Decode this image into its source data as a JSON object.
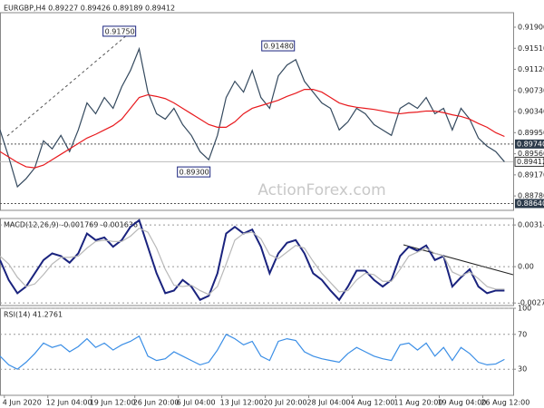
{
  "header": "EURGBP,H4  0.89227 0.89426 0.89189 0.89412",
  "watermark": "ActionForex.com",
  "chart_data": [
    {
      "type": "line",
      "x": [
        0,
        2,
        4,
        6,
        8,
        10,
        12,
        14,
        16,
        18,
        20,
        22,
        24,
        26,
        28,
        30,
        32,
        34,
        36,
        38,
        40,
        42,
        44,
        46,
        48,
        50,
        52,
        54,
        56,
        58,
        60,
        62,
        64,
        66,
        68,
        70,
        72,
        74,
        76,
        78,
        80,
        82,
        84,
        86,
        88,
        90,
        92,
        94,
        96,
        98,
        100,
        102,
        104,
        106,
        108,
        110,
        112,
        114,
        116
      ],
      "series": [
        {
          "name": "EURGBP",
          "color": "#34495e",
          "values": [
            0.9,
            0.895,
            0.8895,
            0.891,
            0.893,
            0.898,
            0.8965,
            0.899,
            0.896,
            0.9,
            0.905,
            0.903,
            0.906,
            0.904,
            0.908,
            0.911,
            0.915,
            0.907,
            0.903,
            0.902,
            0.904,
            0.901,
            0.899,
            0.896,
            0.8945,
            0.899,
            0.906,
            0.909,
            0.907,
            0.911,
            0.906,
            0.904,
            0.91,
            0.912,
            0.913,
            0.909,
            0.907,
            0.905,
            0.904,
            0.9,
            0.9015,
            0.904,
            0.903,
            0.901,
            0.9,
            0.899,
            0.904,
            0.905,
            0.904,
            0.906,
            0.903,
            0.904,
            0.9,
            0.904,
            0.902,
            0.8985,
            0.897,
            0.896,
            0.89412
          ]
        },
        {
          "name": "MA",
          "color": "#e8191d",
          "values": [
            0.896,
            0.895,
            0.894,
            0.8932,
            0.893,
            0.8935,
            0.8945,
            0.8955,
            0.8965,
            0.8975,
            0.8985,
            0.8992,
            0.9,
            0.9008,
            0.902,
            0.904,
            0.906,
            0.9065,
            0.9062,
            0.9058,
            0.905,
            0.904,
            0.903,
            0.902,
            0.901,
            0.9005,
            0.9005,
            0.9015,
            0.903,
            0.904,
            0.9045,
            0.905,
            0.9055,
            0.9062,
            0.9068,
            0.9075,
            0.9075,
            0.907,
            0.906,
            0.905,
            0.9045,
            0.9042,
            0.904,
            0.9038,
            0.9035,
            0.9032,
            0.903,
            0.9032,
            0.9033,
            0.9035,
            0.9035,
            0.9032,
            0.9028,
            0.9025,
            0.902,
            0.9012,
            0.9005,
            0.8995,
            0.8988
          ]
        }
      ],
      "xlim": [
        0,
        118
      ],
      "ylim": [
        0.88514,
        0.92168
      ],
      "yticks": [
        {
          "value": 0.919,
          "label": "0.91900"
        },
        {
          "value": 0.9151,
          "label": "0.91510"
        },
        {
          "value": 0.9112,
          "label": "0.91120"
        },
        {
          "value": 0.9073,
          "label": "0.90730"
        },
        {
          "value": 0.9034,
          "label": "0.90340"
        },
        {
          "value": 0.8995,
          "label": "0.89950"
        },
        {
          "value": 0.8956,
          "label": "0.89560"
        },
        {
          "value": 0.8917,
          "label": "0.89170"
        },
        {
          "value": 0.8878,
          "label": "0.88780"
        }
      ],
      "levels": [
        {
          "value": 0.8974,
          "label": "0.89740"
        },
        {
          "value": 0.8864,
          "label": "0.88640"
        }
      ],
      "last": {
        "value": 0.89412,
        "label": "0.89412"
      },
      "annotations": [
        {
          "x": 31.2,
          "value": 0.9175,
          "label": "0.91750"
        },
        {
          "x": 67.7,
          "value": 0.9148,
          "label": "0.91480"
        },
        {
          "x": 48.3,
          "value": 0.893,
          "label": "0.89300"
        }
      ]
    },
    {
      "type": "line",
      "title": "MACD(12,26,9) -0.001769 -0.001636",
      "x": [
        0,
        2,
        4,
        6,
        8,
        10,
        12,
        14,
        16,
        18,
        20,
        22,
        24,
        26,
        28,
        30,
        32,
        34,
        36,
        38,
        40,
        42,
        44,
        46,
        48,
        50,
        52,
        54,
        56,
        58,
        60,
        62,
        64,
        66,
        68,
        70,
        72,
        74,
        76,
        78,
        80,
        82,
        84,
        86,
        88,
        90,
        92,
        94,
        96,
        98,
        100,
        102,
        104,
        106,
        108,
        110,
        112,
        114,
        116
      ],
      "series": [
        {
          "name": "MACD",
          "color": "#1a237e",
          "values": [
            0.0005,
            -0.001,
            -0.002,
            -0.0015,
            -0.0005,
            0.0005,
            0.001,
            0.0008,
            0.0003,
            0.001,
            0.0025,
            0.002,
            0.0022,
            0.0015,
            0.002,
            0.003,
            0.0035,
            0.0015,
            -0.0005,
            -0.002,
            -0.0018,
            -0.001,
            -0.0015,
            -0.0025,
            -0.0022,
            -0.0005,
            0.0025,
            0.003,
            0.0025,
            0.0028,
            0.0015,
            -0.0005,
            0.001,
            0.0018,
            0.002,
            0.001,
            -0.0005,
            -0.001,
            -0.0018,
            -0.0025,
            -0.0015,
            -0.0003,
            -0.0003,
            -0.001,
            -0.0015,
            -0.001,
            0.0008,
            0.0015,
            0.0012,
            0.0016,
            0.0005,
            0.0008,
            -0.0015,
            -0.0008,
            -0.0002,
            -0.0015,
            -0.002,
            -0.0018,
            -0.0018
          ]
        },
        {
          "name": "Signal",
          "color": "#b8b8b8",
          "values": [
            0.0008,
            0.0002,
            -0.0008,
            -0.0015,
            -0.0013,
            -0.0006,
            0.0002,
            0.0007,
            0.0007,
            0.0008,
            0.0014,
            0.0019,
            0.002,
            0.0019,
            0.0019,
            0.0023,
            0.0029,
            0.0026,
            0.0014,
            -0.0002,
            -0.0014,
            -0.0015,
            -0.0014,
            -0.0018,
            -0.0021,
            -0.0015,
            0.0002,
            0.002,
            0.0025,
            0.0026,
            0.0021,
            0.0009,
            0.0006,
            0.0011,
            0.0016,
            0.0014,
            0.0004,
            -0.0005,
            -0.0012,
            -0.0019,
            -0.0018,
            -0.001,
            -0.0005,
            -0.0006,
            -0.0011,
            -0.0011,
            -0.0002,
            0.0008,
            0.0011,
            0.0014,
            0.001,
            0.0008,
            -0.0004,
            -0.0007,
            -0.0004,
            -0.0009,
            -0.0015,
            -0.0017,
            -0.0017
          ]
        }
      ],
      "xlim": [
        0,
        118
      ],
      "ylim": [
        -0.00293,
        0.00363
      ],
      "yticks": [
        0.003143,
        {
          "value": 0,
          "label": "0.00"
        },
        -0.002737
      ],
      "grid": true
    },
    {
      "type": "line",
      "title": "RSI(14) 41.2761",
      "x": [
        0,
        2,
        4,
        6,
        8,
        10,
        12,
        14,
        16,
        18,
        20,
        22,
        24,
        26,
        28,
        30,
        32,
        34,
        36,
        38,
        40,
        42,
        44,
        46,
        48,
        50,
        52,
        54,
        56,
        58,
        60,
        62,
        64,
        66,
        68,
        70,
        72,
        74,
        76,
        78,
        80,
        82,
        84,
        86,
        88,
        90,
        92,
        94,
        96,
        98,
        100,
        102,
        104,
        106,
        108,
        110,
        112,
        114,
        116
      ],
      "series": [
        {
          "name": "RSI",
          "color": "#3a8ee6",
          "values": [
            45,
            35,
            30,
            38,
            48,
            60,
            55,
            58,
            50,
            56,
            65,
            55,
            60,
            52,
            58,
            62,
            68,
            45,
            40,
            42,
            50,
            45,
            40,
            35,
            38,
            52,
            70,
            65,
            58,
            62,
            45,
            40,
            62,
            65,
            63,
            50,
            45,
            42,
            40,
            38,
            48,
            55,
            50,
            45,
            42,
            40,
            58,
            60,
            52,
            60,
            45,
            55,
            40,
            55,
            48,
            38,
            35,
            36,
            41.2761
          ]
        }
      ],
      "xlim": [
        0,
        118
      ],
      "ylim": [
        0,
        100
      ],
      "yticks": [
        100,
        70,
        30
      ],
      "grid": true,
      "xticks": [
        {
          "value": 1,
          "label": "4 Jun 2020"
        },
        {
          "value": 11,
          "label": "12 Jun 04:00"
        },
        {
          "value": 21,
          "label": "19 Jun 12:00"
        },
        {
          "value": 31,
          "label": "26 Jun 20:00"
        },
        {
          "value": 41,
          "label": "6 Jul 04:00"
        },
        {
          "value": 51,
          "label": "13 Jul 12:00"
        },
        {
          "value": 61,
          "label": "20 Jul 20:00"
        },
        {
          "value": 71,
          "label": "28 Jul 04:00"
        },
        {
          "value": 81,
          "label": "4 Aug 12:00"
        },
        {
          "value": 91,
          "label": "11 Aug 20:00"
        },
        {
          "value": 101,
          "label": "19 Aug 04:00"
        },
        {
          "value": 111,
          "label": "26 Aug 12:00"
        }
      ]
    }
  ]
}
